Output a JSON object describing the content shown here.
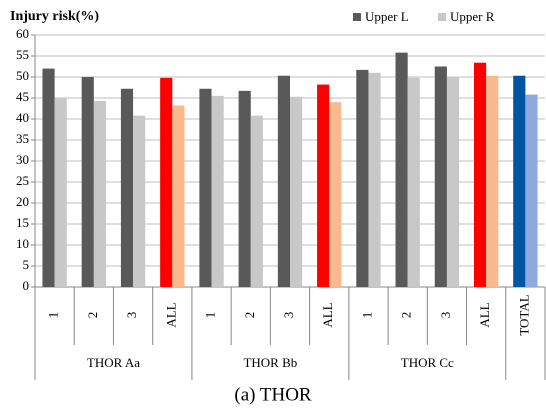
{
  "chart_data": {
    "type": "bar",
    "title": "Injury risk(%)",
    "caption": "(a) THOR",
    "groups": [
      {
        "name": "THOR Aa",
        "categories": [
          "1",
          "2",
          "3",
          "ALL"
        ]
      },
      {
        "name": "THOR Bb",
        "categories": [
          "1",
          "2",
          "3",
          "ALL"
        ]
      },
      {
        "name": "THOR Cc",
        "categories": [
          "1",
          "2",
          "3",
          "ALL"
        ]
      },
      {
        "name": null,
        "categories": [
          "TOTAL"
        ]
      }
    ],
    "series": [
      {
        "name": "Upper L",
        "color": "#595959",
        "colors": [
          "#595959",
          "#595959",
          "#595959",
          "#ff0000",
          "#595959",
          "#595959",
          "#595959",
          "#ff0000",
          "#595959",
          "#595959",
          "#595959",
          "#ff0000",
          "#0055a0"
        ],
        "values": [
          52,
          50,
          47.2,
          49.8,
          47.2,
          46.7,
          50.3,
          48.2,
          51.7,
          55.8,
          52.5,
          53.4,
          50.3
        ]
      },
      {
        "name": "Upper R",
        "color": "#c8c8c8",
        "colors": [
          "#c8c8c8",
          "#c8c8c8",
          "#c8c8c8",
          "#fab98c",
          "#c8c8c8",
          "#c8c8c8",
          "#c8c8c8",
          "#fab98c",
          "#c8c8c8",
          "#c8c8c8",
          "#c8c8c8",
          "#fab98c",
          "#8eaadc"
        ],
        "values": [
          45,
          44.3,
          40.8,
          43.2,
          45.5,
          40.8,
          45.3,
          44,
          51,
          49.8,
          50,
          50.3,
          45.8
        ]
      }
    ],
    "ylim": [
      0,
      60
    ],
    "yticks": [
      0,
      5,
      10,
      15,
      20,
      25,
      30,
      35,
      40,
      45,
      50,
      55,
      60
    ],
    "grid": true
  }
}
